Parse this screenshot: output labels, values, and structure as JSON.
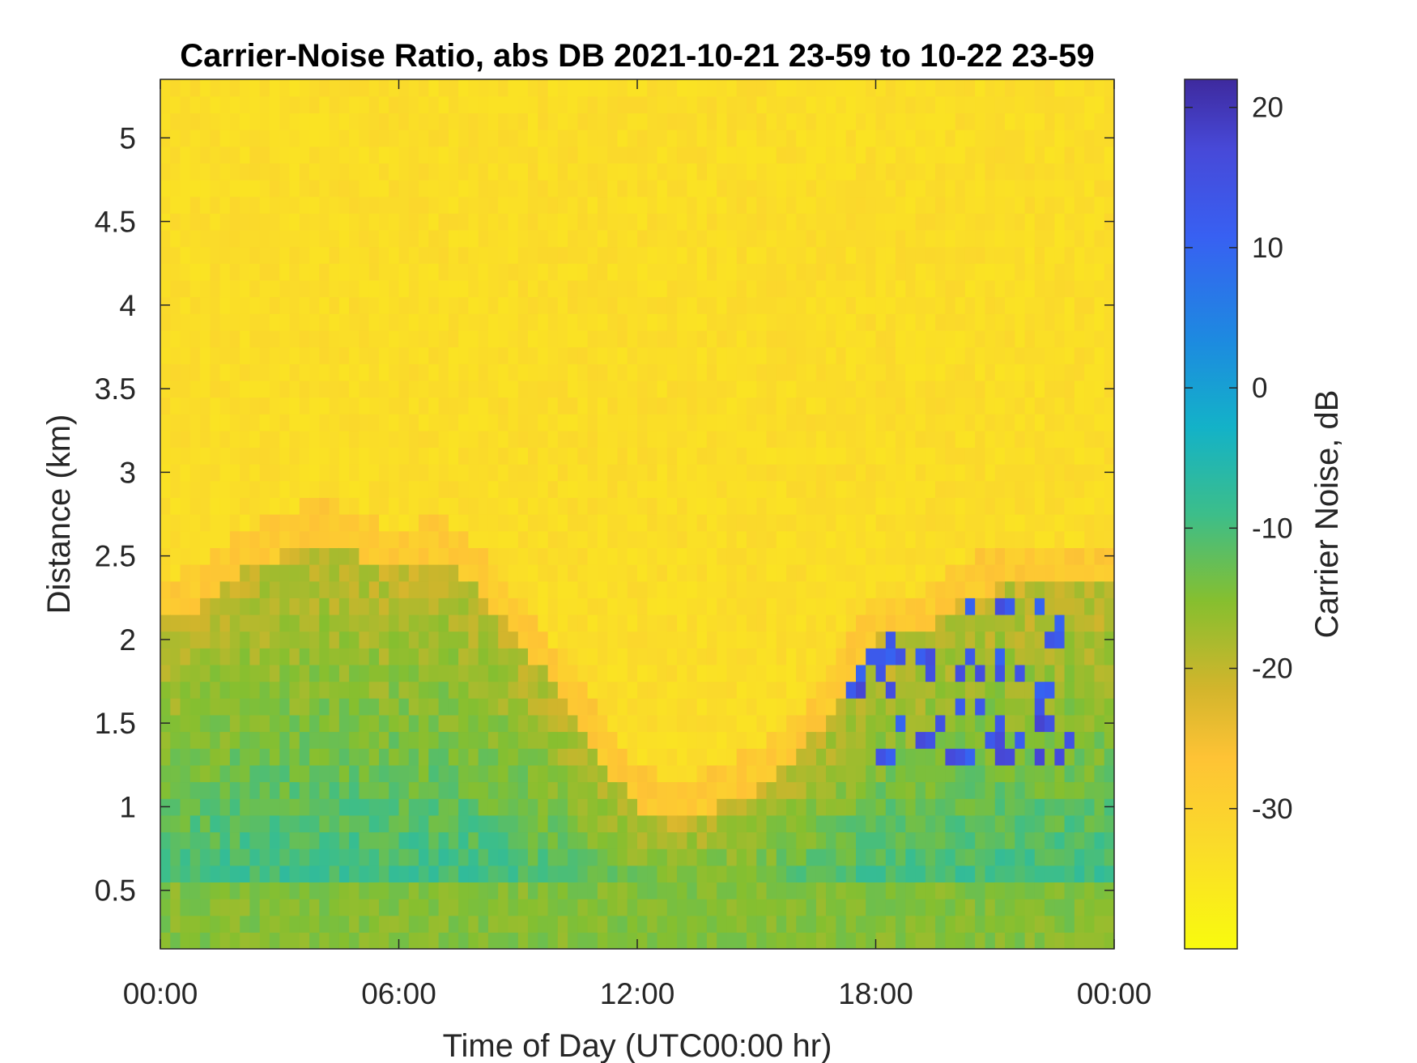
{
  "chart_data": {
    "type": "heatmap",
    "title": "Carrier-Noise Ratio, abs DB 2021-10-21 23-59 to 10-22 23-59",
    "xlabel": "Time of Day (UTC00:00 hr)",
    "ylabel": "Distance (km)",
    "x_ticks": [
      "00:00",
      "06:00",
      "12:00",
      "18:00",
      "00:00"
    ],
    "xlim_hours": [
      0,
      24
    ],
    "y_ticks": [
      "0.5",
      "1",
      "1.5",
      "2",
      "2.5",
      "3",
      "3.5",
      "4",
      "4.5",
      "5"
    ],
    "ylim": [
      0.15,
      5.35
    ],
    "colorbar": {
      "label": "Carrier Noise, dB",
      "ticks": [
        "20",
        "10",
        "0",
        "-10",
        "-20",
        "-30"
      ],
      "range": [
        -40,
        22
      ],
      "colormap": "parula (reversed)",
      "colors": [
        "#f9fb0e",
        "#fec335",
        "#d2b52c",
        "#86bf2f",
        "#3cbe8a",
        "#13b2c8",
        "#1d8ae0",
        "#3860f2",
        "#4033a3"
      ]
    },
    "boundary_high_signal_km": {
      "description": "approximate top of the elevated (green/blue) carrier-noise region vs. hour of day",
      "hours": [
        0,
        1,
        2,
        3,
        4,
        5,
        6,
        7,
        8,
        9,
        10,
        11,
        12,
        13,
        14,
        15,
        16,
        17,
        18,
        19,
        20,
        21,
        22,
        23,
        24
      ],
      "distance_km": [
        2.1,
        2.2,
        2.4,
        2.5,
        2.6,
        2.5,
        2.4,
        2.5,
        2.3,
        2.0,
        1.7,
        1.3,
        1.0,
        0.9,
        1.0,
        1.1,
        1.3,
        1.6,
        2.0,
        2.0,
        2.2,
        2.3,
        2.3,
        2.3,
        2.3
      ]
    },
    "background_value_db": -33,
    "near_ground_value_db": -15
  }
}
